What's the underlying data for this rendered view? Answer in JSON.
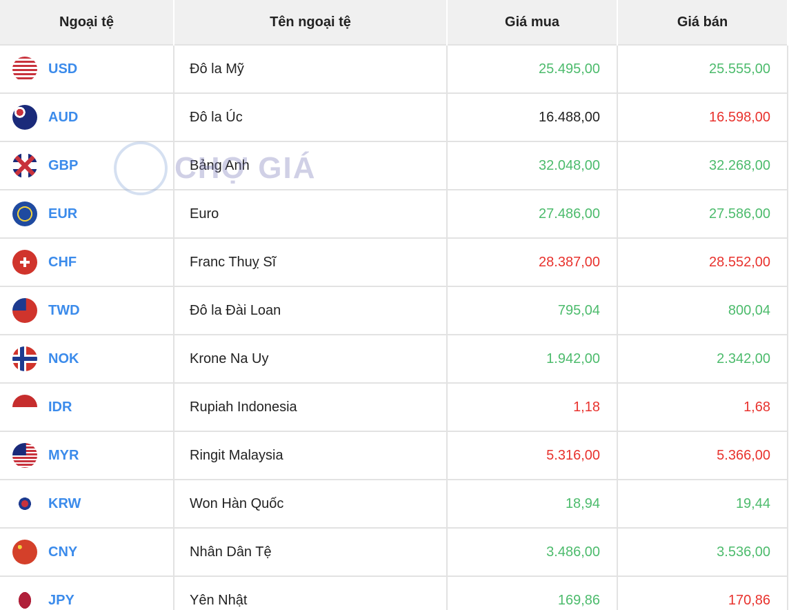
{
  "headers": [
    "Ngoại tệ",
    "Tên ngoại tệ",
    "Giá mua",
    "Giá bán"
  ],
  "watermark": "CHỢ GIÁ",
  "colors": {
    "up": "#4cbb6c",
    "down": "#e8322d",
    "neutral": "#222222",
    "code": "#3b8beb"
  },
  "rows": [
    {
      "code": "USD",
      "name": "Đô la Mỹ",
      "buy": "25.495,00",
      "buy_trend": "up",
      "sell": "25.555,00",
      "sell_trend": "up",
      "flag": "us-flag-icon"
    },
    {
      "code": "AUD",
      "name": "Đô la Úc",
      "buy": "16.488,00",
      "buy_trend": "neutral",
      "sell": "16.598,00",
      "sell_trend": "down",
      "flag": "au-flag-icon"
    },
    {
      "code": "GBP",
      "name": "Bảng Anh",
      "buy": "32.048,00",
      "buy_trend": "up",
      "sell": "32.268,00",
      "sell_trend": "up",
      "flag": "gb-flag-icon"
    },
    {
      "code": "EUR",
      "name": "Euro",
      "buy": "27.486,00",
      "buy_trend": "up",
      "sell": "27.586,00",
      "sell_trend": "up",
      "flag": "eu-flag-icon"
    },
    {
      "code": "CHF",
      "name": "Franc Thuỵ Sĩ",
      "buy": "28.387,00",
      "buy_trend": "down",
      "sell": "28.552,00",
      "sell_trend": "down",
      "flag": "ch-flag-icon"
    },
    {
      "code": "TWD",
      "name": "Đô la Đài Loan",
      "buy": "795,04",
      "buy_trend": "up",
      "sell": "800,04",
      "sell_trend": "up",
      "flag": "tw-flag-icon"
    },
    {
      "code": "NOK",
      "name": "Krone Na Uy",
      "buy": "1.942,00",
      "buy_trend": "up",
      "sell": "2.342,00",
      "sell_trend": "up",
      "flag": "no-flag-icon"
    },
    {
      "code": "IDR",
      "name": "Rupiah Indonesia",
      "buy": "1,18",
      "buy_trend": "down",
      "sell": "1,68",
      "sell_trend": "down",
      "flag": "id-flag-icon"
    },
    {
      "code": "MYR",
      "name": "Ringit Malaysia",
      "buy": "5.316,00",
      "buy_trend": "down",
      "sell": "5.366,00",
      "sell_trend": "down",
      "flag": "my-flag-icon"
    },
    {
      "code": "KRW",
      "name": "Won Hàn Quốc",
      "buy": "18,94",
      "buy_trend": "up",
      "sell": "19,44",
      "sell_trend": "up",
      "flag": "kr-flag-icon"
    },
    {
      "code": "CNY",
      "name": "Nhân Dân Tệ",
      "buy": "3.486,00",
      "buy_trend": "up",
      "sell": "3.536,00",
      "sell_trend": "up",
      "flag": "cn-flag-icon"
    },
    {
      "code": "JPY",
      "name": "Yên Nhật",
      "buy": "169,86",
      "buy_trend": "up",
      "sell": "170,86",
      "sell_trend": "down",
      "flag": "jp-flag-icon"
    }
  ]
}
